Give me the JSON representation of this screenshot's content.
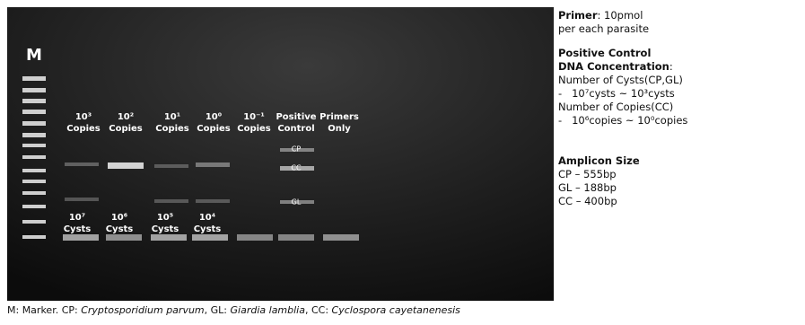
{
  "gel": {
    "marker_label": "M",
    "lanes": [
      {
        "top": "10³",
        "bottom": "Copies"
      },
      {
        "top": "10²",
        "bottom": "Copies"
      },
      {
        "top": "10¹",
        "bottom": "Copies"
      },
      {
        "top": "10⁰",
        "bottom": "Copies"
      },
      {
        "top": "10⁻¹",
        "bottom": "Copies"
      },
      {
        "top": "Positive",
        "bottom": "Control"
      },
      {
        "top": "Primers",
        "bottom": "Only"
      }
    ],
    "cyst_labels": [
      {
        "top": "10⁷",
        "bottom": "Cysts"
      },
      {
        "top": "10⁶",
        "bottom": "Cysts"
      },
      {
        "top": "10⁵",
        "bottom": "Cysts"
      },
      {
        "top": "10⁴",
        "bottom": "Cysts"
      }
    ],
    "band_labels": [
      "CP",
      "CC",
      "GL"
    ]
  },
  "notes": {
    "primer": {
      "bold": "Primer",
      "text": ": 10pmol",
      "line2": "per each parasite"
    },
    "positive_control": {
      "heading1": "Positive Control",
      "heading2": "DNA Concentration",
      "colon": ":",
      "lines": [
        "Number of Cysts(CP,GL)",
        "-   10⁷cysts ~ 10³cysts",
        "Number of Copies(CC)",
        "-   10⁶copies ~ 10⁰copies"
      ]
    },
    "amplicon": {
      "heading": "Amplicon Size",
      "lines": [
        "CP – 555bp",
        "GL – 188bp",
        "CC – 400bp"
      ]
    }
  },
  "caption": [
    "M: Marker. CP: ",
    "Cryptosporidium parvum",
    ", GL: ",
    "Giardia lamblia",
    ", CC: ",
    "Cyclospora cayetanenesis"
  ]
}
